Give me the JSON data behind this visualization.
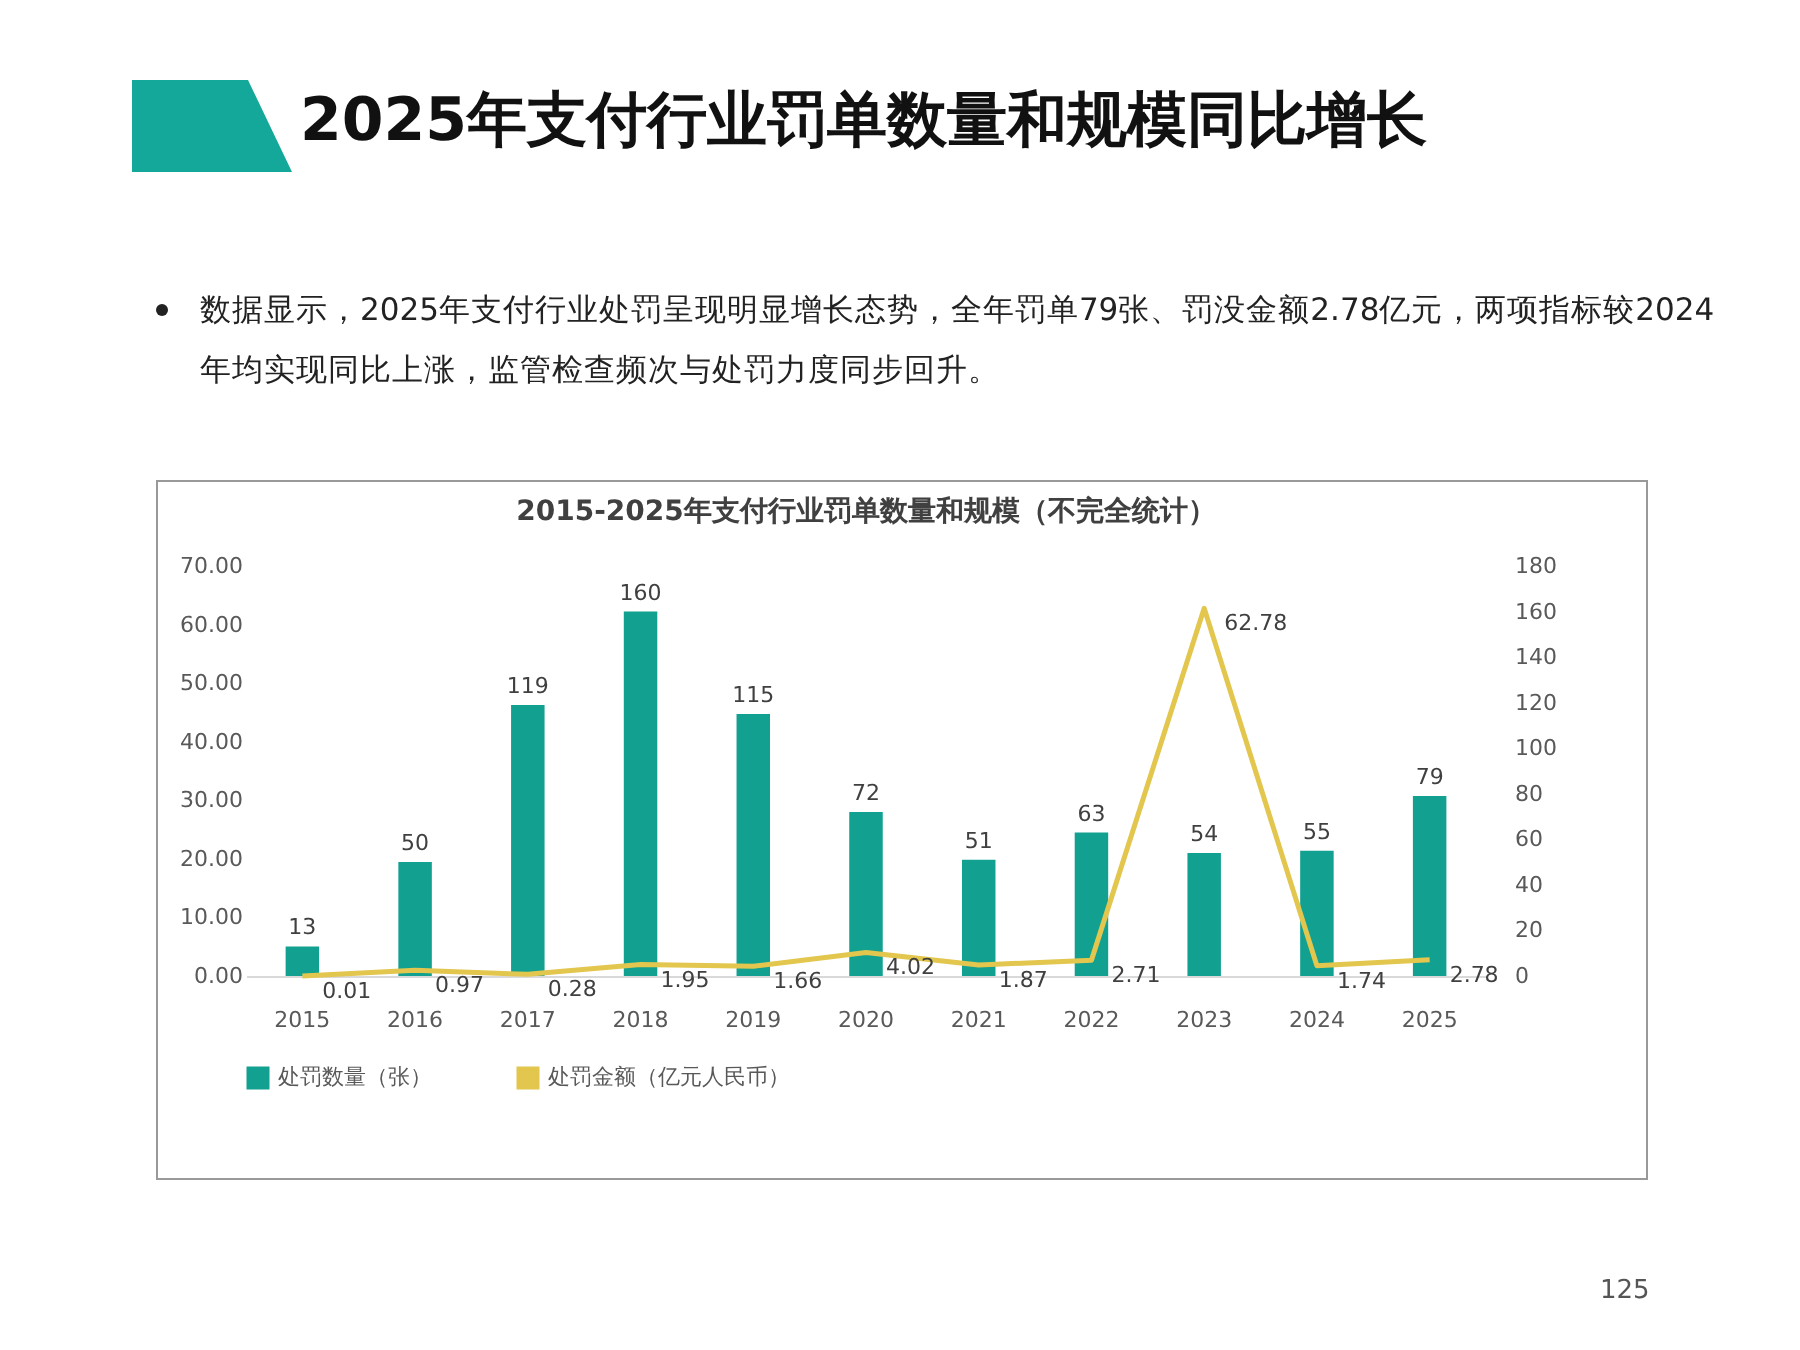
{
  "chart_data": {
    "type": "bar",
    "title": "2025年支付行业罚单数量和规模同比增长",
    "subtitle": "数据显示，2025年支付行业处罚呈现明显增长态势，全年罚单79张、罚没金额2.78亿元，两项指标较2024年均实现同比上涨，监管检查频次与处罚力度同步回升。",
    "annotations": [
      "2015-2025年支付行业罚单数量和规模（不完全统计）",
      "125"
    ],
    "categories": [
      "2015",
      "2016",
      "2017",
      "2018",
      "2019",
      "2020",
      "2021",
      "2022",
      "2023",
      "2024",
      "2025"
    ],
    "series": [
      {
        "name": "处罚数量（张）",
        "axis": "y2",
        "color": "#12a091",
        "values": [
          13,
          50,
          119,
          160,
          115,
          72,
          51,
          63,
          54,
          55,
          79
        ]
      },
      {
        "name": "处罚金额（亿元人民币）",
        "type": "line",
        "color": "#e2c64d",
        "values": [
          0.01,
          0.97,
          0.28,
          1.95,
          1.66,
          4.02,
          1.87,
          2.71,
          62.78,
          1.74,
          2.78
        ]
      }
    ],
    "ylim": [
      0,
      70
    ],
    "yticks": [
      {
        "value": 0,
        "label": "0.00"
      },
      {
        "value": 10,
        "label": "10.00"
      },
      {
        "value": 20,
        "label": "20.00"
      },
      {
        "value": 30,
        "label": "30.00"
      },
      {
        "value": 40,
        "label": "40.00"
      },
      {
        "value": 50,
        "label": "50.00"
      },
      {
        "value": 60,
        "label": "60.00"
      },
      {
        "value": 70,
        "label": "70.00"
      }
    ],
    "y2lim": [
      0,
      180
    ],
    "y2ticks": [
      0,
      20,
      40,
      60,
      80,
      100,
      120,
      140,
      160,
      180
    ],
    "data_labels": true,
    "legend": "bottom",
    "grid": false,
    "marker": "none"
  }
}
